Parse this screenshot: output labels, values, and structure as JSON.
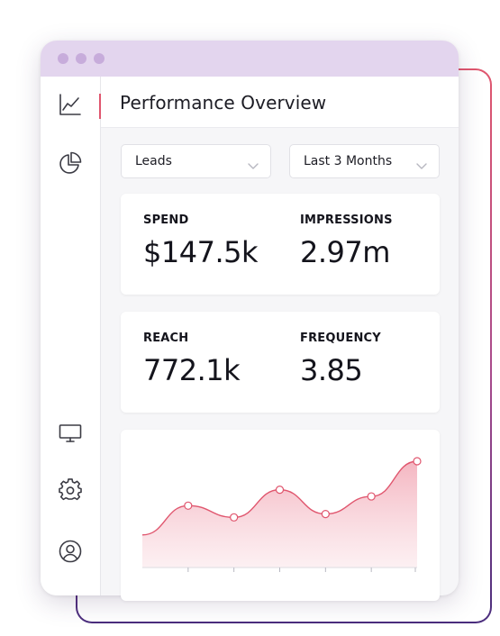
{
  "header": {
    "title": "Performance Overview"
  },
  "filters": {
    "metric": {
      "value": "Leads"
    },
    "period": {
      "value": "Last 3 Months"
    }
  },
  "stats": [
    {
      "label": "SPEND",
      "value": "$147.5k"
    },
    {
      "label": "IMPRESSIONS",
      "value": "2.97m"
    },
    {
      "label": "REACH",
      "value": "772.1k"
    },
    {
      "label": "FREQUENCY",
      "value": "3.85"
    }
  ],
  "sidebar": {
    "items": [
      {
        "icon": "line-chart-icon"
      },
      {
        "icon": "pie-chart-icon"
      },
      {
        "icon": "monitor-icon"
      },
      {
        "icon": "gear-icon"
      },
      {
        "icon": "user-icon"
      }
    ]
  },
  "colors": {
    "accent": "#e0566e",
    "titlebar": "#e3d5ee",
    "window_dots": "#c7acdb",
    "frame_gradient_end": "#4a2d7d",
    "area_fill": "#f2b8c2"
  },
  "chart_data": {
    "type": "area",
    "y": [
      0.12,
      0.47,
      0.33,
      0.66,
      0.37,
      0.58,
      1.0
    ],
    "points_marked": [
      1,
      2,
      3,
      4,
      5,
      6
    ],
    "x_ticks": 6,
    "grid": false
  }
}
